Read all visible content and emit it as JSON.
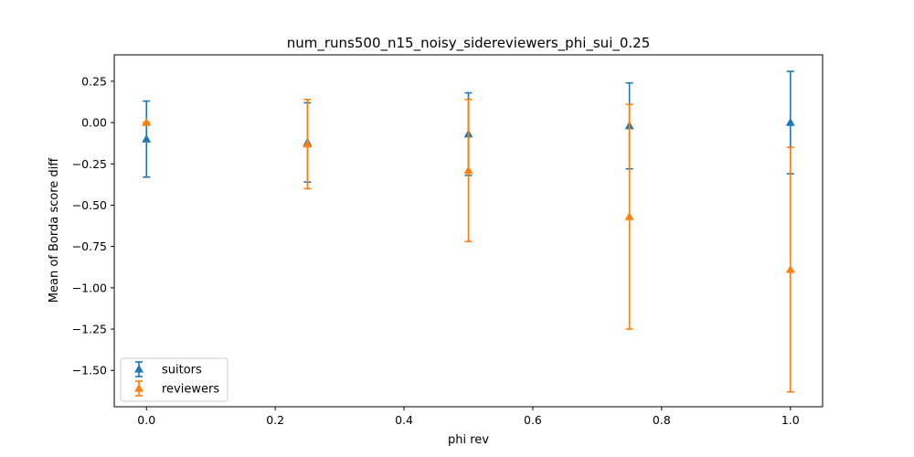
{
  "chart_data": {
    "type": "errorbar",
    "title": "num_runs500_n15_noisy_sidereviewers_phi_sui_0.25",
    "xlabel": "phi rev",
    "ylabel": "Mean of Borda score diff",
    "xlim": [
      -0.05,
      1.05
    ],
    "ylim": [
      -1.72,
      0.41
    ],
    "xticks": [
      0.0,
      0.2,
      0.4,
      0.6,
      0.8,
      1.0
    ],
    "xtick_labels": [
      "0.0",
      "0.2",
      "0.4",
      "0.6",
      "0.8",
      "1.0"
    ],
    "yticks": [
      0.25,
      0.0,
      -0.25,
      -0.5,
      -0.75,
      -1.0,
      -1.25,
      -1.5
    ],
    "ytick_labels": [
      "0.25",
      "0.00",
      "−0.25",
      "−0.50",
      "−0.75",
      "−1.00",
      "−1.25",
      "−1.50"
    ],
    "grid": false,
    "legend_position": "lower-left",
    "x": [
      0.0,
      0.25,
      0.5,
      0.75,
      1.0
    ],
    "series": [
      {
        "name": "suitors",
        "color": "#1f77b4",
        "marker": "triangle-up",
        "y": [
          -0.1,
          -0.12,
          -0.07,
          -0.02,
          0.0
        ],
        "yerr": [
          0.23,
          0.24,
          0.25,
          0.26,
          0.31
        ]
      },
      {
        "name": "reviewers",
        "color": "#ff7f0e",
        "marker": "triangle-up",
        "y": [
          0.0,
          -0.13,
          -0.29,
          -0.57,
          -0.89
        ],
        "yerr": [
          0.0,
          0.27,
          0.43,
          0.68,
          0.74
        ]
      }
    ]
  }
}
